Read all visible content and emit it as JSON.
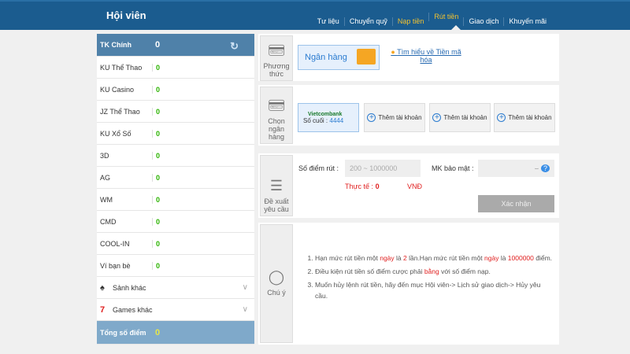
{
  "header": {
    "title": "Hội viên",
    "nav": [
      "Tư liệu",
      "Chuyển quỹ",
      "Nạp tiền",
      "Rút tiền",
      "Giao dịch",
      "Khuyến mãi"
    ]
  },
  "sidebar": {
    "main": {
      "label": "TK Chính",
      "value": "0"
    },
    "items": [
      {
        "label": "KU Thể Thao",
        "value": "0"
      },
      {
        "label": "KU Casino",
        "value": "0"
      },
      {
        "label": "JZ Thể Thao",
        "value": "0"
      },
      {
        "label": "KU Xổ Số",
        "value": "0"
      },
      {
        "label": "3D",
        "value": "0"
      },
      {
        "label": "AG",
        "value": "0"
      },
      {
        "label": "WM",
        "value": "0"
      },
      {
        "label": "CMD",
        "value": "0"
      },
      {
        "label": "COOL-IN",
        "value": "0"
      },
      {
        "label": "Ví bạn bè",
        "value": "0"
      }
    ],
    "groups": [
      "Sảnh khác",
      "Games khác"
    ],
    "total": {
      "label": "Tổng số điểm",
      "value": "0"
    }
  },
  "method": {
    "label": "Phương thức",
    "bank": "Ngân hàng",
    "link": "Tìm hiểu về Tiền mã hóa"
  },
  "bank_select": {
    "label": "Chọn ngân hàng",
    "bank_name": "Vietcombank",
    "last_digits_label": "Số cuối :",
    "last_digits": "4444",
    "add_label": "Thêm tài khoản"
  },
  "request": {
    "label": "Đề xuất yêu cầu",
    "amount_label": "Số điểm rút :",
    "amount_placeholder": "200 ~ 1000000",
    "password_label": "MK bảo mật :",
    "actual_label": "Thực tế :",
    "actual_value": "0",
    "currency": "VNĐ",
    "confirm": "Xác nhận"
  },
  "notes": {
    "label": "Chú ý",
    "items": [
      [
        "Hạn mức rút tiền một ",
        "ngày",
        " là ",
        "2",
        " lần.Hạn mức rút tiền một ",
        "ngày",
        " là ",
        "1000000",
        " điểm."
      ],
      [
        "Điều kiện rút tiền số điểm cược phải ",
        "bằng",
        " với số điểm nạp."
      ],
      [
        "Muốn hủy lệnh rút tiền, hãy đến mục Hội viên-> Lịch sử giao dịch-> Hủy yêu cầu."
      ]
    ]
  }
}
